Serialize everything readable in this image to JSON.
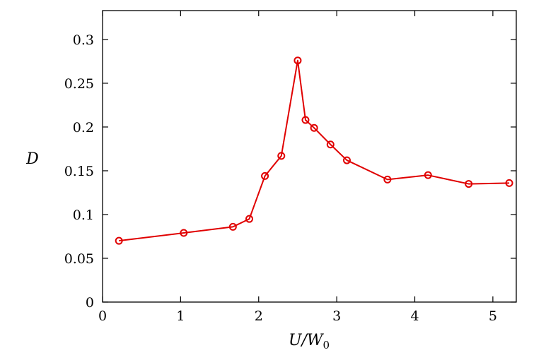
{
  "chart_data": {
    "type": "line",
    "xlabel": "U/W",
    "xlabel_subscript": "0",
    "ylabel": "D",
    "xlim": [
      0,
      5.3
    ],
    "ylim": [
      0,
      0.333
    ],
    "xticks": [
      0,
      1,
      2,
      3,
      4,
      5
    ],
    "yticks": [
      0,
      0.05,
      0.1,
      0.15,
      0.2,
      0.25,
      0.3
    ],
    "grid": false,
    "legend": "none",
    "series": [
      {
        "color": "#e00000",
        "marker": "open-circle",
        "x": [
          0.21,
          1.04,
          1.67,
          1.88,
          2.08,
          2.29,
          2.5,
          2.6,
          2.71,
          2.92,
          3.13,
          3.65,
          4.17,
          4.69,
          5.21
        ],
        "y": [
          0.07,
          0.079,
          0.086,
          0.095,
          0.144,
          0.167,
          0.276,
          0.208,
          0.199,
          0.18,
          0.162,
          0.14,
          0.145,
          0.135,
          0.136
        ]
      }
    ]
  }
}
